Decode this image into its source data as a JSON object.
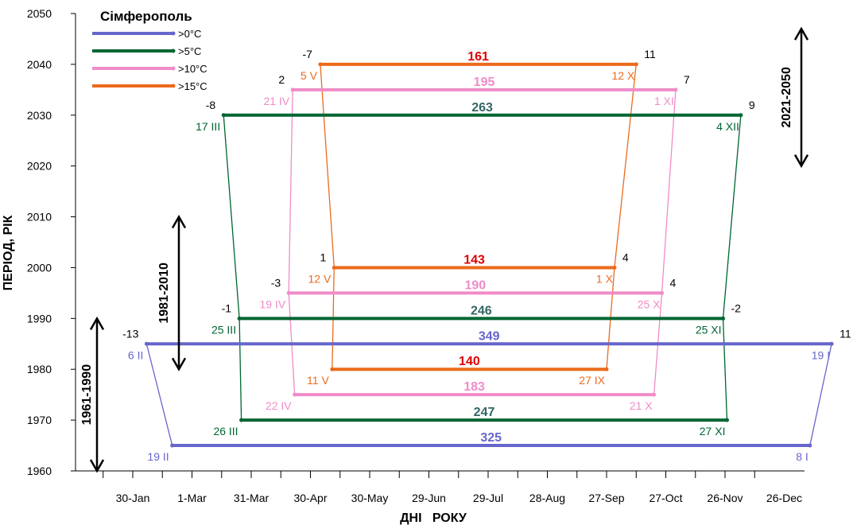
{
  "chart_data": {
    "type": "line",
    "title": "Сімферополь",
    "xlabel": "ДНІ   РОКУ",
    "ylabel": "ПЕРІОД, РІК",
    "ylim": [
      1960,
      2050
    ],
    "yticks": [
      "1960",
      "1970",
      "1980",
      "1990",
      "2000",
      "2010",
      "2020",
      "2030",
      "2040",
      "2050"
    ],
    "xticks": [
      "30-Jan",
      "1-Mar",
      "31-Mar",
      "30-Apr",
      "30-May",
      "29-Jun",
      "29-Jul",
      "28-Aug",
      "27-Sep",
      "27-Oct",
      "26-Nov",
      "26-Dec"
    ],
    "legend": [
      {
        "label": ">0°C",
        "color": "#6666cc"
      },
      {
        "label": ">5°C",
        "color": "#006633"
      },
      {
        "label": ">10°C",
        "color": "#f08cc8"
      },
      {
        "label": ">15°C",
        "color": "#ec6a1c"
      }
    ],
    "periods": [
      {
        "label": "1961-1990",
        "from": 1960,
        "to": 1990
      },
      {
        "label": "1981-2010",
        "from": 1980,
        "to": 2010
      },
      {
        "label": "2021-2050",
        "from": 2020,
        "to": 2047
      }
    ],
    "series": [
      {
        "name": ">0°C",
        "color": "#6666cc",
        "dur_color": "#6666cc",
        "points": [
          {
            "y": 1965,
            "start": "19 II",
            "start_doy": 50,
            "end": "8 I",
            "end_doy": 373,
            "dur": "325"
          },
          {
            "y": 1985,
            "start": "6 II",
            "start_doy": 37,
            "end": "19 I",
            "end_doy": 384,
            "dur": "349",
            "start_anom": "-13",
            "end_anom": "11"
          }
        ]
      },
      {
        "name": ">5°C",
        "color": "#006633",
        "dur_color": "#336666",
        "points": [
          {
            "y": 1970,
            "start": "26 III",
            "start_doy": 85,
            "end": "27 XI",
            "end_doy": 331,
            "dur": "247"
          },
          {
            "y": 1990,
            "start": "25 III",
            "start_doy": 84,
            "end": "25 XI",
            "end_doy": 329,
            "dur": "246",
            "start_anom": "-1",
            "end_anom": "-2"
          },
          {
            "y": 2030,
            "start": "17 III",
            "start_doy": 76,
            "end": "4 XII",
            "end_doy": 338,
            "dur": "263",
            "start_anom": "-8",
            "end_anom": "9"
          }
        ]
      },
      {
        "name": ">10°C",
        "color": "#f08cc8",
        "dur_color": "#f08cc8",
        "points": [
          {
            "y": 1975,
            "start": "22 IV",
            "start_doy": 112,
            "end": "21 X",
            "end_doy": 294,
            "dur": "183"
          },
          {
            "y": 1995,
            "start": "19 IV",
            "start_doy": 109,
            "end": "25 X",
            "end_doy": 298,
            "dur": "190",
            "start_anom": "-3",
            "end_anom": "4"
          },
          {
            "y": 2035,
            "start": "21 IV",
            "start_doy": 111,
            "end": "1 XI",
            "end_doy": 305,
            "dur": "195",
            "start_anom": "2",
            "end_anom": "7"
          }
        ]
      },
      {
        "name": ">15°C",
        "color": "#ec6a1c",
        "dur_color": "#dd0000",
        "points": [
          {
            "y": 1980,
            "start": "11 V",
            "start_doy": 131,
            "end": "27 IX",
            "end_doy": 270,
            "dur": "140"
          },
          {
            "y": 2000,
            "start": "12 V",
            "start_doy": 132,
            "end": "1 X",
            "end_doy": 274,
            "dur": "143",
            "start_anom": "1",
            "end_anom": "4"
          },
          {
            "y": 2040,
            "start": "5 V",
            "start_doy": 125,
            "end": "12 X",
            "end_doy": 285,
            "dur": "161",
            "start_anom": "-7",
            "end_anom": "11"
          }
        ]
      }
    ]
  }
}
